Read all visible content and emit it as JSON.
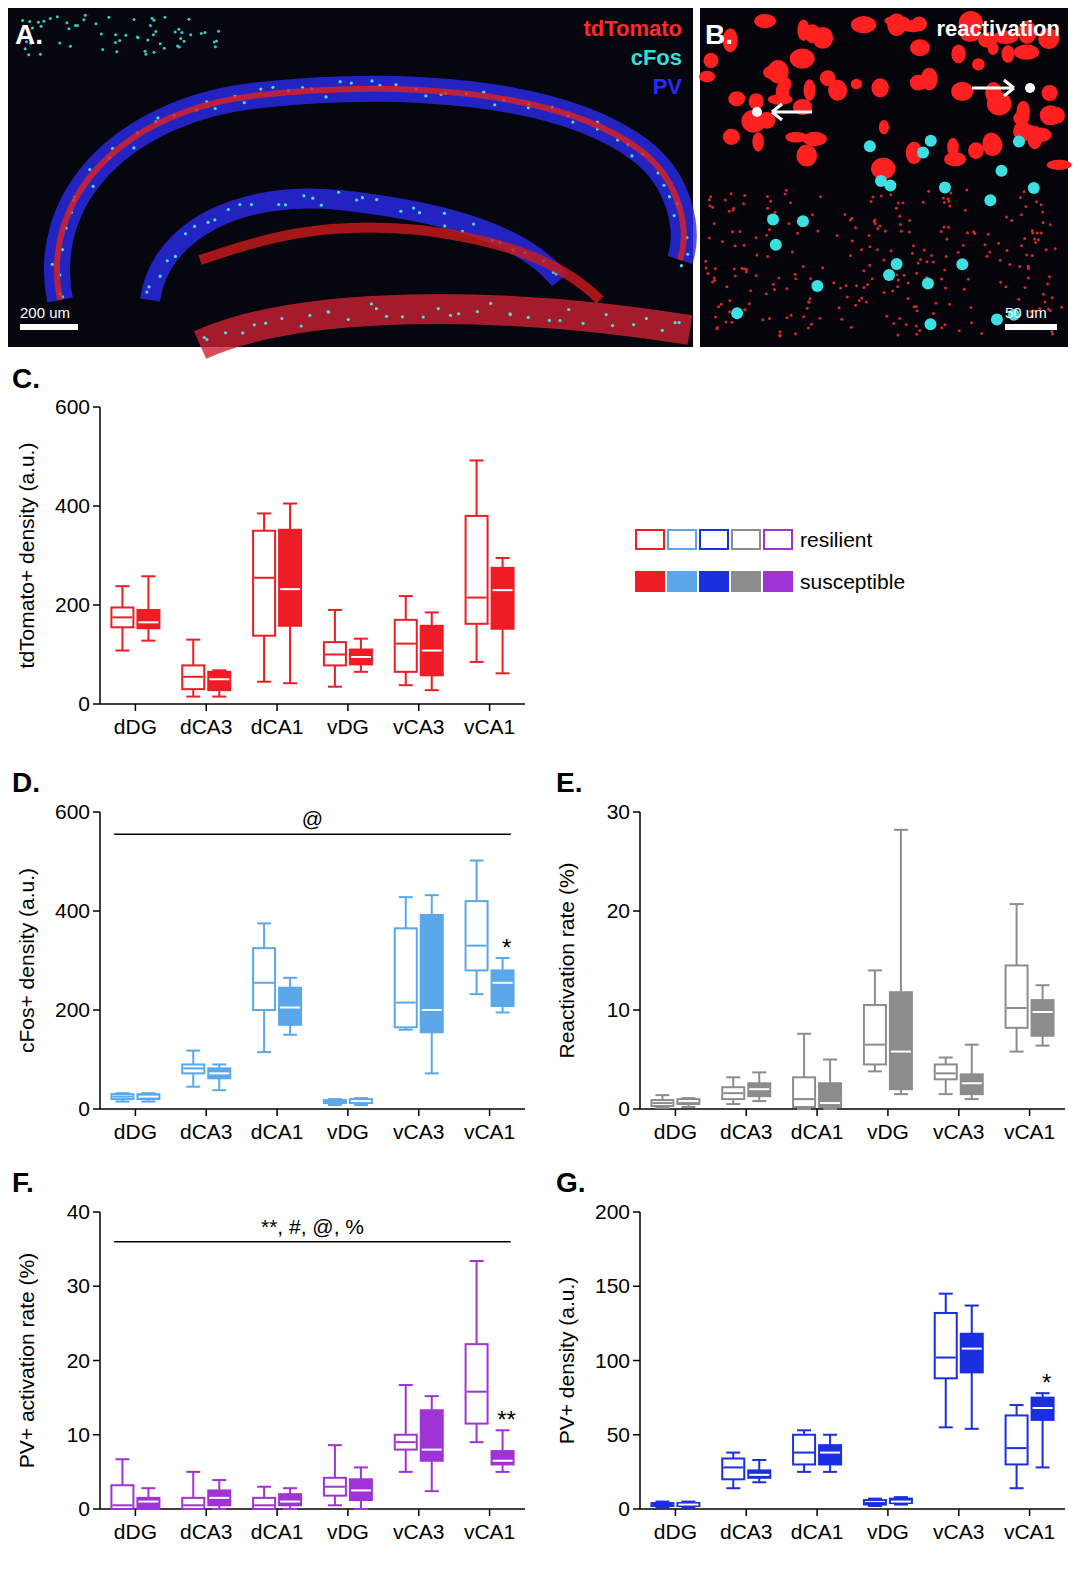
{
  "image_panels": [
    {
      "label": "A.",
      "channels": [
        {
          "text": "tdTomato",
          "color": "#ff2a2a"
        },
        {
          "text": "cFos",
          "color": "#33dddd"
        },
        {
          "text": "PV",
          "color": "#2a2aff"
        }
      ],
      "scale_bar": "200 um"
    },
    {
      "label": "B.",
      "caption": "reactivation",
      "scale_bar": "50 um"
    }
  ],
  "chart_data": [
    {
      "type": "box",
      "label": "C.",
      "y_label": "tdTomato+ density (a.u.)",
      "categories": [
        "dDG",
        "dCA3",
        "dCA1",
        "vDG",
        "vCA3",
        "vCA1"
      ],
      "ylim": [
        0,
        600
      ],
      "yticks": [
        0,
        200,
        400,
        600
      ],
      "legend": "right",
      "series": [
        {
          "name": "resilient",
          "color": "#ee1c25",
          "marker": "open",
          "min": [
            108,
            15,
            45,
            35,
            38,
            85
          ],
          "q1": [
            155,
            30,
            138,
            78,
            65,
            162
          ],
          "median": [
            175,
            55,
            255,
            100,
            122,
            215
          ],
          "q3": [
            195,
            78,
            350,
            125,
            170,
            380
          ],
          "max": [
            238,
            130,
            385,
            190,
            218,
            492
          ]
        },
        {
          "name": "susceptible",
          "color": "#ee1c25",
          "marker": "filled",
          "min": [
            128,
            15,
            42,
            65,
            28,
            62
          ],
          "q1": [
            153,
            28,
            158,
            80,
            58,
            152
          ],
          "median": [
            165,
            50,
            232,
            95,
            108,
            230
          ],
          "q3": [
            190,
            65,
            352,
            110,
            158,
            275
          ],
          "max": [
            258,
            68,
            405,
            132,
            185,
            295
          ]
        }
      ],
      "annotations": []
    },
    {
      "type": "box",
      "label": "D.",
      "y_label": "cFos+ density (a.u.)",
      "categories": [
        "dDG",
        "dCA3",
        "dCA1",
        "vDG",
        "vCA3",
        "vCA1"
      ],
      "ylim": [
        0,
        600
      ],
      "yticks": [
        0,
        200,
        400,
        600
      ],
      "series": [
        {
          "name": "resilient",
          "color": "#5aa8ea",
          "marker": "open",
          "min": [
            15,
            45,
            115,
            8,
            160,
            232
          ],
          "q1": [
            20,
            72,
            200,
            12,
            165,
            280
          ],
          "median": [
            25,
            82,
            255,
            15,
            215,
            330
          ],
          "q3": [
            30,
            90,
            325,
            18,
            365,
            420
          ],
          "max": [
            32,
            118,
            375,
            20,
            428,
            502
          ]
        },
        {
          "name": "susceptible",
          "color": "#5aa8ea",
          "marker": "filled",
          "min": [
            15,
            38,
            150,
            8,
            72,
            195
          ],
          "q1": [
            20,
            62,
            170,
            12,
            155,
            208
          ],
          "median": [
            25,
            72,
            205,
            16,
            200,
            255
          ],
          "q3": [
            30,
            82,
            245,
            20,
            392,
            280
          ],
          "max": [
            32,
            90,
            265,
            22,
            432,
            305
          ]
        }
      ],
      "annotations": [
        {
          "type": "bracket",
          "text": "@",
          "y": 555,
          "from": "dDG",
          "to": "vCA1"
        },
        {
          "type": "star",
          "text": "*",
          "category": "vCA1",
          "series": "susceptible"
        }
      ]
    },
    {
      "type": "box",
      "label": "E.",
      "y_label": "Reactivation rate (%)",
      "categories": [
        "dDG",
        "dCA3",
        "dCA1",
        "vDG",
        "vCA3",
        "vCA1"
      ],
      "ylim": [
        0,
        30
      ],
      "yticks": [
        0,
        10,
        20,
        30
      ],
      "series": [
        {
          "name": "resilient",
          "color": "#8c8c8c",
          "marker": "open",
          "min": [
            0.1,
            0.5,
            0,
            3.8,
            1.5,
            5.8
          ],
          "q1": [
            0.3,
            1.0,
            0.2,
            4.5,
            3.0,
            8.2
          ],
          "median": [
            0.6,
            1.6,
            1.0,
            6.5,
            3.6,
            10.2
          ],
          "q3": [
            0.9,
            2.2,
            3.2,
            10.5,
            4.5,
            14.5
          ],
          "max": [
            1.4,
            3.2,
            7.6,
            14.0,
            5.2,
            20.7
          ]
        },
        {
          "name": "susceptible",
          "color": "#8c8c8c",
          "marker": "filled",
          "min": [
            0.2,
            0.8,
            0,
            1.5,
            1.0,
            6.4
          ],
          "q1": [
            0.5,
            1.3,
            0.2,
            2.0,
            1.5,
            7.4
          ],
          "median": [
            0.8,
            2.0,
            0.6,
            5.8,
            2.6,
            9.8
          ],
          "q3": [
            1.0,
            2.6,
            2.6,
            11.8,
            3.5,
            11.0
          ],
          "max": [
            1.1,
            3.7,
            5.0,
            28.2,
            6.5,
            12.5
          ]
        }
      ],
      "annotations": []
    },
    {
      "type": "box",
      "label": "F.",
      "y_label": "PV+ activation rate (%)",
      "categories": [
        "dDG",
        "dCA3",
        "dCA1",
        "vDG",
        "vCA3",
        "vCA1"
      ],
      "ylim": [
        0,
        40
      ],
      "yticks": [
        0,
        10,
        20,
        30,
        40
      ],
      "series": [
        {
          "name": "resilient",
          "color": "#a033d6",
          "marker": "open",
          "min": [
            0,
            0,
            0,
            0.5,
            5.0,
            9.0
          ],
          "q1": [
            0,
            0,
            0,
            1.8,
            8.0,
            11.5
          ],
          "median": [
            0.5,
            0.5,
            0.5,
            3.0,
            9.0,
            15.8
          ],
          "q3": [
            3.2,
            1.5,
            1.5,
            4.2,
            10.0,
            22.2
          ],
          "max": [
            6.7,
            5.0,
            3.0,
            8.6,
            16.7,
            33.4
          ]
        },
        {
          "name": "susceptible",
          "color": "#a033d6",
          "marker": "filled",
          "min": [
            0,
            0,
            0,
            0,
            2.4,
            5.0
          ],
          "q1": [
            0,
            0.5,
            0.5,
            1.2,
            6.5,
            6.0
          ],
          "median": [
            1.0,
            1.5,
            1.0,
            2.5,
            8.0,
            6.5
          ],
          "q3": [
            1.5,
            2.5,
            2.0,
            4.0,
            13.3,
            7.8
          ],
          "max": [
            2.8,
            3.9,
            2.8,
            5.6,
            15.2,
            10.6
          ]
        }
      ],
      "annotations": [
        {
          "type": "bracket",
          "text": "**, #, @, %",
          "y": 36,
          "from": "dDG",
          "to": "vCA1"
        },
        {
          "type": "star",
          "text": "**",
          "category": "vCA1",
          "series": "susceptible"
        }
      ]
    },
    {
      "type": "box",
      "label": "G.",
      "y_label": "PV+ density (a.u.)",
      "categories": [
        "dDG",
        "dCA3",
        "dCA1",
        "vDG",
        "vCA3",
        "vCA1"
      ],
      "ylim": [
        0,
        200
      ],
      "yticks": [
        0,
        50,
        100,
        150,
        200
      ],
      "series": [
        {
          "name": "resilient",
          "color": "#1a2fe0",
          "marker": "open",
          "min": [
            1,
            14,
            25,
            2,
            55,
            14
          ],
          "q1": [
            2,
            20,
            30,
            3,
            88,
            30
          ],
          "median": [
            3,
            28,
            38,
            4,
            102,
            41
          ],
          "q3": [
            4,
            34,
            50,
            6,
            132,
            63
          ],
          "max": [
            5,
            38,
            53,
            7,
            145,
            70
          ]
        },
        {
          "name": "susceptible",
          "color": "#1a2fe0",
          "marker": "filled",
          "min": [
            1,
            18,
            25,
            3,
            54,
            28
          ],
          "q1": [
            2,
            21,
            30,
            4,
            92,
            60
          ],
          "median": [
            3,
            23,
            38,
            5,
            108,
            68
          ],
          "q3": [
            4,
            26,
            43,
            7,
            118,
            75
          ],
          "max": [
            5,
            33,
            50,
            8,
            137,
            78
          ]
        }
      ],
      "annotations": [
        {
          "type": "star",
          "text": "*",
          "category": "vCA1",
          "series": "susceptible"
        }
      ]
    }
  ]
}
